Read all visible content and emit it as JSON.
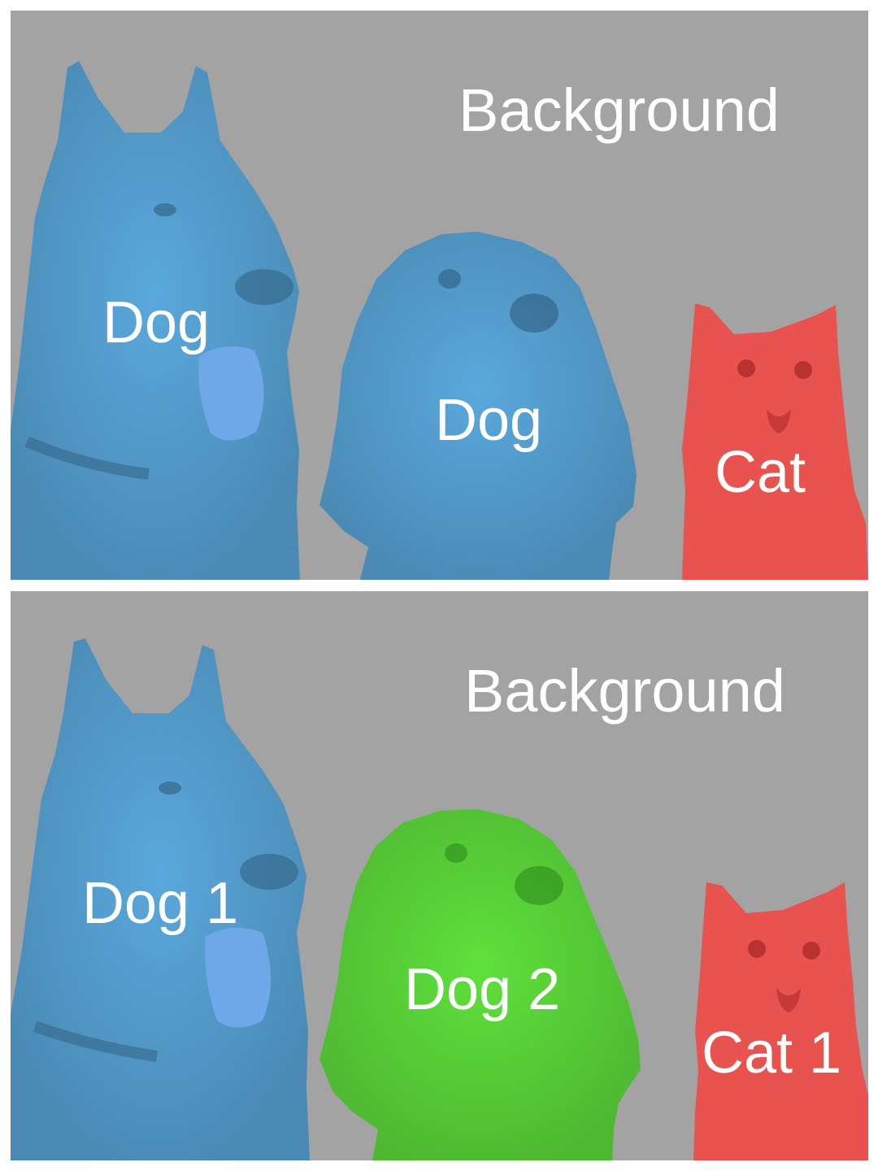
{
  "panels": [
    {
      "id": "semantic",
      "labels": {
        "background": "Background",
        "dog_left": "Dog",
        "dog_middle": "Dog",
        "cat": "Cat"
      },
      "colors": {
        "dog_left": "#5aa8dc",
        "dog_middle": "#5aa8dc",
        "cat": "#e8524f",
        "background": "#a3a3a3"
      }
    },
    {
      "id": "instance",
      "labels": {
        "background": "Background",
        "dog_left": "Dog 1",
        "dog_middle": "Dog 2",
        "cat": "Cat 1"
      },
      "colors": {
        "dog_left": "#5aa8dc",
        "dog_middle": "#5fe03c",
        "cat": "#e8524f",
        "background": "#a3a3a3"
      }
    }
  ]
}
